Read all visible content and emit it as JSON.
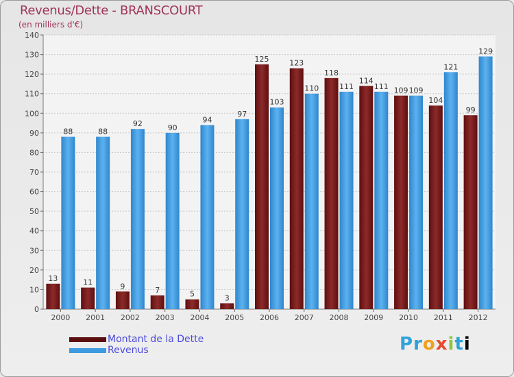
{
  "chart_data": {
    "type": "bar",
    "title": "Revenus/Dette - BRANSCOURT",
    "subtitle": "(en milliers d'€)",
    "categories": [
      "2000",
      "2001",
      "2002",
      "2003",
      "2004",
      "2005",
      "2006",
      "2007",
      "2008",
      "2009",
      "2010",
      "2011",
      "2012"
    ],
    "series": [
      {
        "name": "Montant de la Dette",
        "color": "#7a1a1a",
        "values": [
          13,
          11,
          9,
          7,
          5,
          3,
          125,
          123,
          118,
          114,
          109,
          104,
          99
        ]
      },
      {
        "name": "Revenus",
        "color": "#3c9ae0",
        "values": [
          88,
          88,
          92,
          90,
          94,
          97,
          103,
          110,
          111,
          111,
          109,
          121,
          129
        ]
      }
    ],
    "ylim": [
      0,
      140
    ],
    "yticks": [
      0,
      10,
      20,
      30,
      40,
      50,
      60,
      70,
      80,
      90,
      100,
      110,
      120,
      130,
      140
    ],
    "grid": true,
    "legend_position": "bottom-left"
  },
  "brand": {
    "logo_text": "Proxiti"
  }
}
